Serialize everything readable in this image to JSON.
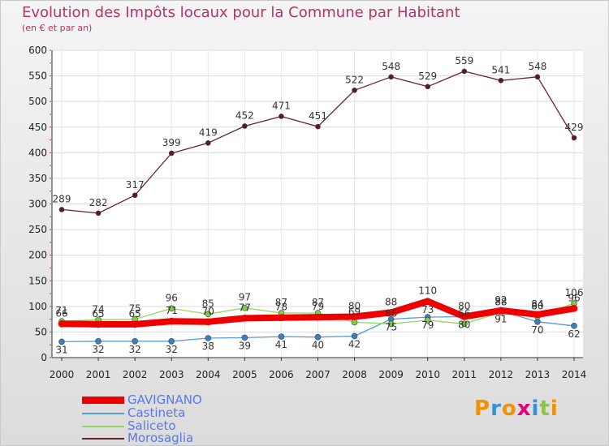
{
  "chart_data": {
    "type": "line",
    "title": "Evolution des Impôts locaux pour la Commune par Habitant",
    "subtitle": "(en € et par an)",
    "xlabel": "",
    "ylabel": "",
    "ylim": [
      0,
      600
    ],
    "yticks": [
      0,
      50,
      100,
      150,
      200,
      250,
      300,
      350,
      400,
      450,
      500,
      550,
      600
    ],
    "categories": [
      "2000",
      "2001",
      "2002",
      "2003",
      "2004",
      "2005",
      "2006",
      "2007",
      "2008",
      "2009",
      "2010",
      "2011",
      "2012",
      "2013",
      "2014"
    ],
    "series": [
      {
        "name": "GAVIGNANO",
        "color": "#ee0000",
        "values": [
          66,
          65,
          65,
          71,
          70,
          77,
          78,
          79,
          80,
          88,
          110,
          80,
          92,
          84,
          96
        ]
      },
      {
        "name": "Castineta",
        "color": "#5a9bd4",
        "values": [
          31,
          32,
          32,
          32,
          38,
          39,
          41,
          40,
          42,
          75,
          79,
          80,
          91,
          70,
          62
        ]
      },
      {
        "name": "Saliceto",
        "color": "#90d860",
        "values": [
          71,
          74,
          75,
          96,
          85,
          97,
          87,
          87,
          69,
          66,
          73,
          66,
          88,
          80,
          106
        ]
      },
      {
        "name": "Morosaglia",
        "color": "#6b2130",
        "values": [
          289,
          282,
          317,
          399,
          419,
          452,
          471,
          451,
          522,
          548,
          529,
          559,
          541,
          548,
          429
        ]
      }
    ],
    "value_labels": [
      [
        66,
        65,
        65,
        71,
        70,
        77,
        78,
        79,
        80,
        88,
        110,
        80,
        92,
        84,
        96
      ],
      [
        31,
        32,
        32,
        32,
        38,
        39,
        41,
        40,
        42,
        75,
        79,
        80,
        91,
        70,
        62
      ],
      [
        71,
        74,
        75,
        96,
        85,
        97,
        87,
        87,
        69,
        66,
        73,
        66,
        88,
        80,
        106
      ],
      [
        289,
        282,
        317,
        399,
        419,
        452,
        471,
        451,
        522,
        548,
        529,
        559,
        541,
        548,
        429
      ]
    ]
  },
  "legend": {
    "items": [
      {
        "label": "GAVIGNANO",
        "color": "#ee0000"
      },
      {
        "label": "Castineta",
        "color": "#5a9bd4"
      },
      {
        "label": "Saliceto",
        "color": "#90d860"
      },
      {
        "label": "Morosaglia",
        "color": "#6b2130"
      }
    ]
  },
  "logo": {
    "text": "Proxiti",
    "colors": [
      "#f39200",
      "#3a8fd8",
      "#f39200",
      "#e6007e",
      "#3a8fd8",
      "#8cc63f",
      "#f39200"
    ]
  }
}
